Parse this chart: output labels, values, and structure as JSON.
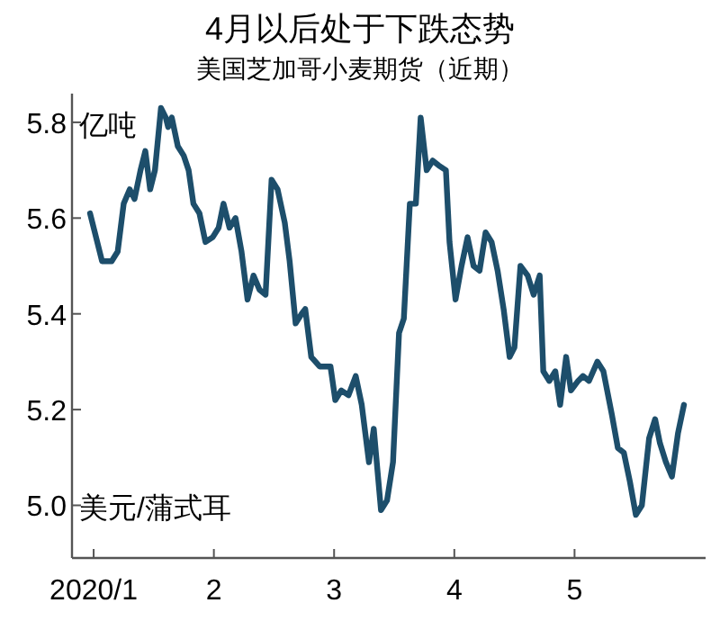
{
  "chart_data": {
    "type": "line",
    "title": "4月以后处于下跌态势",
    "subtitle": "美国芝加哥小麦期货（近期）",
    "annotations": [
      "亿吨",
      "美元/蒲式耳"
    ],
    "xlim": [
      0.82,
      6.09
    ],
    "ylim": [
      4.89,
      5.86
    ],
    "xticks": [
      {
        "value": 1,
        "label": "2020/1"
      },
      2,
      3,
      4,
      5
    ],
    "yticks": [
      {
        "value": 5.0,
        "label": "5.0"
      },
      5.2,
      5.4,
      5.6,
      5.8
    ],
    "grid": false,
    "marker": "none",
    "line_style": "solid",
    "series": [
      {
        "color": "#1d4e6b",
        "x": [
          0.97,
          1.07,
          1.15,
          1.2,
          1.25,
          1.3,
          1.34,
          1.39,
          1.43,
          1.47,
          1.51,
          1.56,
          1.6,
          1.62,
          1.65,
          1.7,
          1.75,
          1.79,
          1.83,
          1.88,
          1.93,
          1.99,
          2.04,
          2.08,
          2.13,
          2.18,
          2.23,
          2.28,
          2.33,
          2.38,
          2.43,
          2.48,
          2.53,
          2.59,
          2.63,
          2.68,
          2.73,
          2.76,
          2.81,
          2.88,
          2.93,
          2.97,
          3.01,
          3.06,
          3.12,
          3.18,
          3.23,
          3.29,
          3.33,
          3.39,
          3.44,
          3.49,
          3.54,
          3.58,
          3.63,
          3.68,
          3.72,
          3.77,
          3.82,
          3.87,
          3.93,
          3.96,
          4.01,
          4.06,
          4.11,
          4.16,
          4.21,
          4.26,
          4.31,
          4.36,
          4.41,
          4.46,
          4.5,
          4.55,
          4.61,
          4.66,
          4.71,
          4.74,
          4.79,
          4.84,
          4.88,
          4.93,
          4.97,
          5.03,
          5.07,
          5.12,
          5.19,
          5.24,
          5.31,
          5.36,
          5.41,
          5.46,
          5.51,
          5.56,
          5.62,
          5.67,
          5.71,
          5.76,
          5.81,
          5.86,
          5.91
        ],
        "values": [
          5.61,
          5.51,
          5.51,
          5.53,
          5.63,
          5.66,
          5.64,
          5.7,
          5.74,
          5.66,
          5.7,
          5.83,
          5.81,
          5.79,
          5.81,
          5.75,
          5.73,
          5.7,
          5.63,
          5.61,
          5.55,
          5.56,
          5.58,
          5.63,
          5.58,
          5.6,
          5.53,
          5.43,
          5.48,
          5.45,
          5.44,
          5.68,
          5.66,
          5.59,
          5.51,
          5.38,
          5.4,
          5.41,
          5.31,
          5.29,
          5.29,
          5.29,
          5.22,
          5.24,
          5.23,
          5.27,
          5.21,
          5.09,
          5.16,
          4.99,
          5.01,
          5.09,
          5.36,
          5.39,
          5.63,
          5.63,
          5.81,
          5.7,
          5.72,
          5.71,
          5.7,
          5.55,
          5.43,
          5.5,
          5.56,
          5.5,
          5.49,
          5.57,
          5.55,
          5.49,
          5.41,
          5.31,
          5.33,
          5.5,
          5.48,
          5.44,
          5.48,
          5.28,
          5.26,
          5.28,
          5.21,
          5.31,
          5.24,
          5.26,
          5.27,
          5.26,
          5.3,
          5.28,
          5.19,
          5.12,
          5.11,
          5.05,
          4.98,
          5.0,
          5.14,
          5.18,
          5.13,
          5.09,
          5.06,
          5.15,
          5.21
        ]
      }
    ]
  }
}
